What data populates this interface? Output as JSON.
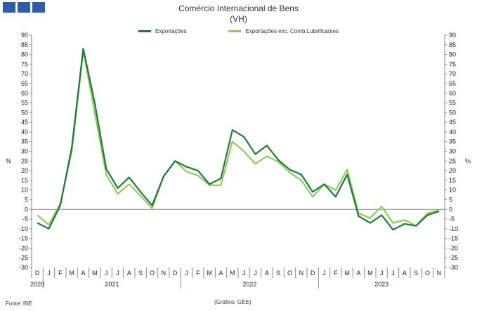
{
  "header": {
    "title": "Comércio Internacional de Bens",
    "subtitle": "(VH)"
  },
  "footer": {
    "source": "Fonte: INE",
    "credit": "(Gráfico: GEE)"
  },
  "colors": {
    "logo": "#2e5da7",
    "series_dark": "#1e7a3c",
    "series_light": "#8fcd5a",
    "axis": "#888888"
  },
  "chart_data": {
    "type": "line",
    "title": "Comércio Internacional de Bens",
    "subtitle": "(VH)",
    "ylabel_left": "%",
    "ylabel_right": "%",
    "ylim": [
      -30,
      90
    ],
    "yticks": [
      -30,
      -25,
      -20,
      -15,
      -10,
      -5,
      0,
      5,
      10,
      15,
      20,
      25,
      30,
      35,
      40,
      45,
      50,
      55,
      60,
      65,
      70,
      75,
      80,
      85,
      90
    ],
    "legend_position": "top-center",
    "grid": false,
    "x": [
      "D",
      "J",
      "F",
      "M",
      "A",
      "M",
      "J",
      "J",
      "A",
      "S",
      "O",
      "N",
      "D",
      "J",
      "F",
      "M",
      "A",
      "M",
      "J",
      "J",
      "A",
      "S",
      "O",
      "N",
      "D",
      "J",
      "F",
      "M",
      "A",
      "M",
      "J",
      "J",
      "A",
      "S",
      "O",
      "N"
    ],
    "years": [
      {
        "label": "2020",
        "start": 0,
        "end": 0
      },
      {
        "label": "2021",
        "start": 1,
        "end": 12
      },
      {
        "label": "2022",
        "start": 13,
        "end": 24
      },
      {
        "label": "2023",
        "start": 25,
        "end": 35
      }
    ],
    "series": [
      {
        "name": "Exportações",
        "color": "#1e7a3c",
        "values": [
          -7,
          -10,
          2,
          32,
          83,
          55,
          21,
          11,
          16.5,
          9,
          2,
          17,
          25,
          22,
          20,
          13,
          16,
          41,
          37.5,
          28.5,
          33,
          25.5,
          20.5,
          18,
          9,
          13,
          6.5,
          18,
          -3.5,
          -7,
          -3,
          -10.5,
          -7.5,
          -8.5,
          -3,
          -1
        ]
      },
      {
        "name": "Exportações exc. Comb.Lubrificantes",
        "color": "#8fcd5a",
        "values": [
          -3,
          -8,
          3,
          30,
          82,
          50,
          18,
          8,
          13,
          7,
          0.5,
          17,
          25,
          19.5,
          17.5,
          12.5,
          12.5,
          35,
          30,
          23.5,
          27.5,
          24.5,
          19,
          15,
          6.5,
          13,
          10,
          20.5,
          -2,
          -4.5,
          1.5,
          -7,
          -5.5,
          -8.5,
          -2,
          -0.5
        ]
      }
    ]
  }
}
